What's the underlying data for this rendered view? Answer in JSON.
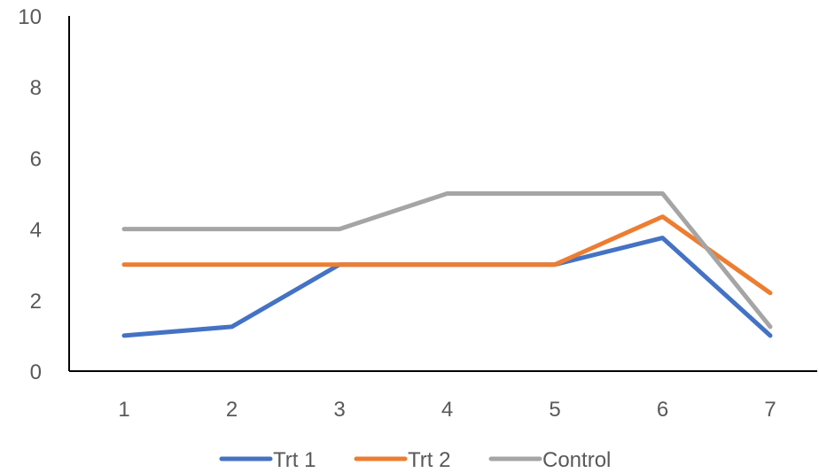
{
  "chart_data": {
    "type": "line",
    "title": "",
    "xlabel": "",
    "ylabel": "",
    "x": [
      1,
      2,
      3,
      4,
      5,
      6,
      7
    ],
    "x_tick_labels": [
      "1",
      "2",
      "3",
      "4",
      "5",
      "6",
      "7"
    ],
    "ylim": [
      0,
      10
    ],
    "y_ticks": [
      0,
      2,
      4,
      6,
      8,
      10
    ],
    "y_tick_labels": [
      "0",
      "2",
      "4",
      "6",
      "8",
      "10"
    ],
    "grid": false,
    "legend_position": "bottom",
    "series": [
      {
        "name": "Trt 1",
        "color": "#4472C4",
        "values": [
          1,
          1.25,
          3,
          3,
          3,
          3.75,
          1
        ]
      },
      {
        "name": "Trt 2",
        "color": "#ED7D31",
        "values": [
          3,
          3,
          3,
          3,
          3,
          4.35,
          2.2
        ]
      },
      {
        "name": "Control",
        "color": "#A5A5A5",
        "values": [
          4,
          4,
          4,
          5,
          5,
          5,
          1.25
        ]
      }
    ]
  }
}
